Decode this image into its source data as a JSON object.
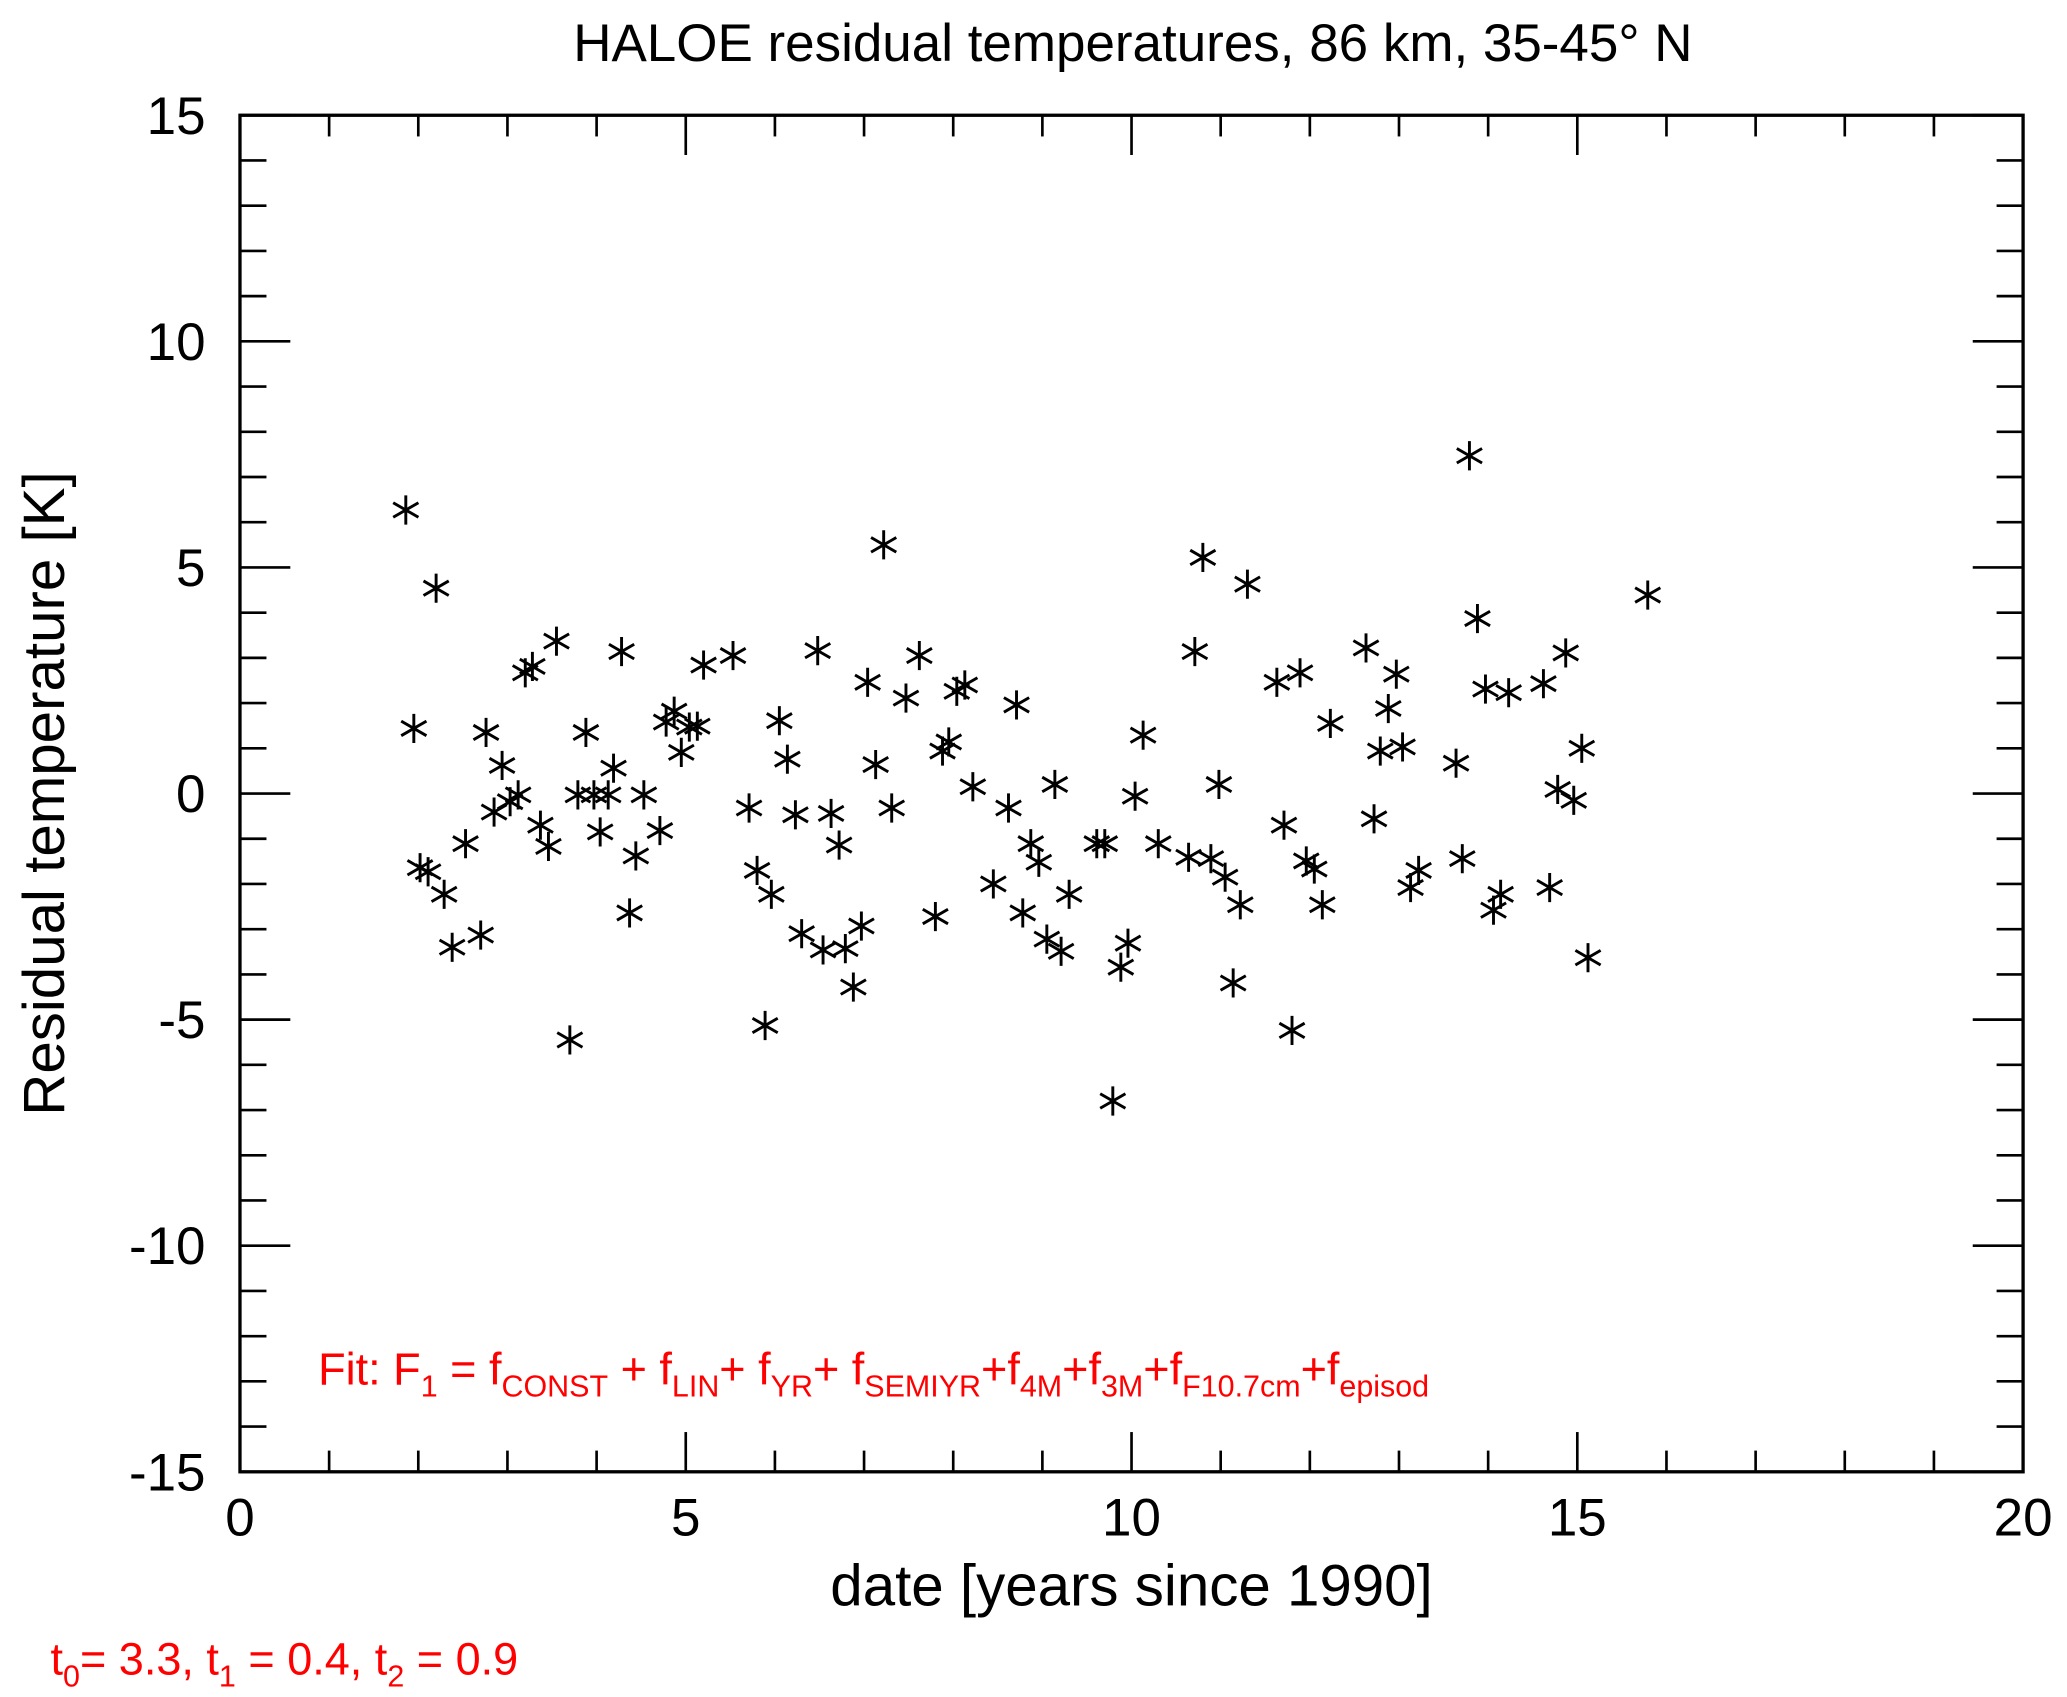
{
  "chart_data": {
    "type": "scatter",
    "title": "HALOE residual temperatures, 86 km, 35-45° N",
    "xlabel": "date [years since 1990]",
    "ylabel": "Residual temperature [K]",
    "xlim": [
      0,
      20
    ],
    "ylim": [
      -15,
      15
    ],
    "xticks": [
      0,
      5,
      10,
      15,
      20
    ],
    "yticks": [
      -15,
      -10,
      -5,
      0,
      5,
      10,
      15
    ],
    "x_minor_step": 1,
    "y_minor_step": 1,
    "grid": false,
    "marker": "asterisk",
    "marker_color": "#000000",
    "annotation_color": "#ff0000",
    "fit_annotation": {
      "parts": [
        {
          "t": "Fit: F"
        },
        {
          "s": "1"
        },
        {
          "t": " = f"
        },
        {
          "s": "CONST"
        },
        {
          "t": " + f"
        },
        {
          "s": "LIN"
        },
        {
          "t": "+ f"
        },
        {
          "s": "YR"
        },
        {
          "t": "+ f"
        },
        {
          "s": "SEMIYR"
        },
        {
          "t": "+f"
        },
        {
          "s": "4M"
        },
        {
          "t": "+f"
        },
        {
          "s": "3M"
        },
        {
          "t": "+f"
        },
        {
          "s": "F10.7cm"
        },
        {
          "t": "+f"
        },
        {
          "s": "episod"
        }
      ]
    },
    "params_annotation": {
      "parts": [
        {
          "t": "t"
        },
        {
          "s": "0"
        },
        {
          "t": "= 3.3, t"
        },
        {
          "s": "1"
        },
        {
          "t": " = 0.4, t"
        },
        {
          "s": "2"
        },
        {
          "t": " = 0.9"
        }
      ]
    },
    "points": [
      [
        1.86,
        6.27
      ],
      [
        1.95,
        1.44
      ],
      [
        2.02,
        -1.64
      ],
      [
        2.11,
        -1.73
      ],
      [
        2.2,
        4.54
      ],
      [
        2.29,
        -2.23
      ],
      [
        2.38,
        -3.4
      ],
      [
        2.53,
        -1.11
      ],
      [
        2.7,
        -3.13
      ],
      [
        2.76,
        1.35
      ],
      [
        2.85,
        -0.41
      ],
      [
        2.94,
        0.62
      ],
      [
        3.03,
        -0.18
      ],
      [
        3.12,
        -0.03
      ],
      [
        3.2,
        2.67
      ],
      [
        3.28,
        2.81
      ],
      [
        3.37,
        -0.7
      ],
      [
        3.46,
        -1.17
      ],
      [
        3.55,
        3.37
      ],
      [
        3.7,
        -5.45
      ],
      [
        3.79,
        -0.03
      ],
      [
        3.88,
        1.35
      ],
      [
        3.97,
        -0.03
      ],
      [
        4.04,
        -0.85
      ],
      [
        4.13,
        -0.03
      ],
      [
        4.19,
        0.56
      ],
      [
        4.28,
        3.14
      ],
      [
        4.37,
        -2.64
      ],
      [
        4.44,
        -1.38
      ],
      [
        4.53,
        -0.03
      ],
      [
        4.71,
        -0.82
      ],
      [
        4.78,
        1.58
      ],
      [
        4.87,
        1.82
      ],
      [
        4.95,
        0.91
      ],
      [
        5.04,
        1.47
      ],
      [
        5.13,
        1.49
      ],
      [
        5.2,
        2.84
      ],
      [
        5.53,
        3.05
      ],
      [
        5.71,
        -0.32
      ],
      [
        5.8,
        -1.7
      ],
      [
        5.89,
        -5.13
      ],
      [
        5.96,
        -2.23
      ],
      [
        6.05,
        1.61
      ],
      [
        6.14,
        0.76
      ],
      [
        6.23,
        -0.47
      ],
      [
        6.3,
        -3.1
      ],
      [
        6.48,
        3.16
      ],
      [
        6.54,
        -3.46
      ],
      [
        6.63,
        -0.44
      ],
      [
        6.72,
        -1.14
      ],
      [
        6.79,
        -3.43
      ],
      [
        6.88,
        -4.28
      ],
      [
        6.97,
        -2.93
      ],
      [
        7.04,
        2.46
      ],
      [
        7.13,
        0.64
      ],
      [
        7.22,
        5.5
      ],
      [
        7.31,
        -0.32
      ],
      [
        7.47,
        2.11
      ],
      [
        7.62,
        3.05
      ],
      [
        7.8,
        -2.72
      ],
      [
        7.88,
        0.94
      ],
      [
        7.95,
        1.14
      ],
      [
        8.04,
        2.26
      ],
      [
        8.13,
        2.4
      ],
      [
        8.22,
        0.15
      ],
      [
        8.45,
        -2.0
      ],
      [
        8.62,
        -0.32
      ],
      [
        8.71,
        1.96
      ],
      [
        8.78,
        -2.64
      ],
      [
        8.87,
        -1.11
      ],
      [
        8.96,
        -1.52
      ],
      [
        9.05,
        -3.22
      ],
      [
        9.14,
        0.2
      ],
      [
        9.21,
        -3.49
      ],
      [
        9.3,
        -2.23
      ],
      [
        9.61,
        -1.11
      ],
      [
        9.7,
        -1.11
      ],
      [
        9.79,
        -6.8
      ],
      [
        9.88,
        -3.84
      ],
      [
        9.96,
        -3.31
      ],
      [
        10.04,
        -0.06
      ],
      [
        10.13,
        1.29
      ],
      [
        10.3,
        -1.11
      ],
      [
        10.64,
        -1.41
      ],
      [
        10.71,
        3.14
      ],
      [
        10.8,
        5.22
      ],
      [
        10.89,
        -1.44
      ],
      [
        10.98,
        0.2
      ],
      [
        11.05,
        -1.85
      ],
      [
        11.14,
        -4.19
      ],
      [
        11.22,
        -2.46
      ],
      [
        11.3,
        4.63
      ],
      [
        11.63,
        2.46
      ],
      [
        11.71,
        -0.7
      ],
      [
        11.8,
        -5.24
      ],
      [
        11.89,
        2.67
      ],
      [
        11.96,
        -1.49
      ],
      [
        12.05,
        -1.67
      ],
      [
        12.14,
        -2.46
      ],
      [
        12.23,
        1.55
      ],
      [
        12.63,
        3.22
      ],
      [
        12.72,
        -0.56
      ],
      [
        12.79,
        0.94
      ],
      [
        12.88,
        1.88
      ],
      [
        12.97,
        2.64
      ],
      [
        13.04,
        1.03
      ],
      [
        13.13,
        -2.08
      ],
      [
        13.22,
        -1.7
      ],
      [
        13.64,
        0.67
      ],
      [
        13.71,
        -1.44
      ],
      [
        13.79,
        7.47
      ],
      [
        13.88,
        3.87
      ],
      [
        13.97,
        2.31
      ],
      [
        14.06,
        -2.58
      ],
      [
        14.14,
        -2.23
      ],
      [
        14.23,
        2.23
      ],
      [
        14.62,
        2.43
      ],
      [
        14.69,
        -2.08
      ],
      [
        14.78,
        0.09
      ],
      [
        14.87,
        3.11
      ],
      [
        14.96,
        -0.15
      ],
      [
        15.05,
        1.0
      ],
      [
        15.12,
        -3.63
      ],
      [
        15.79,
        4.39
      ]
    ]
  }
}
